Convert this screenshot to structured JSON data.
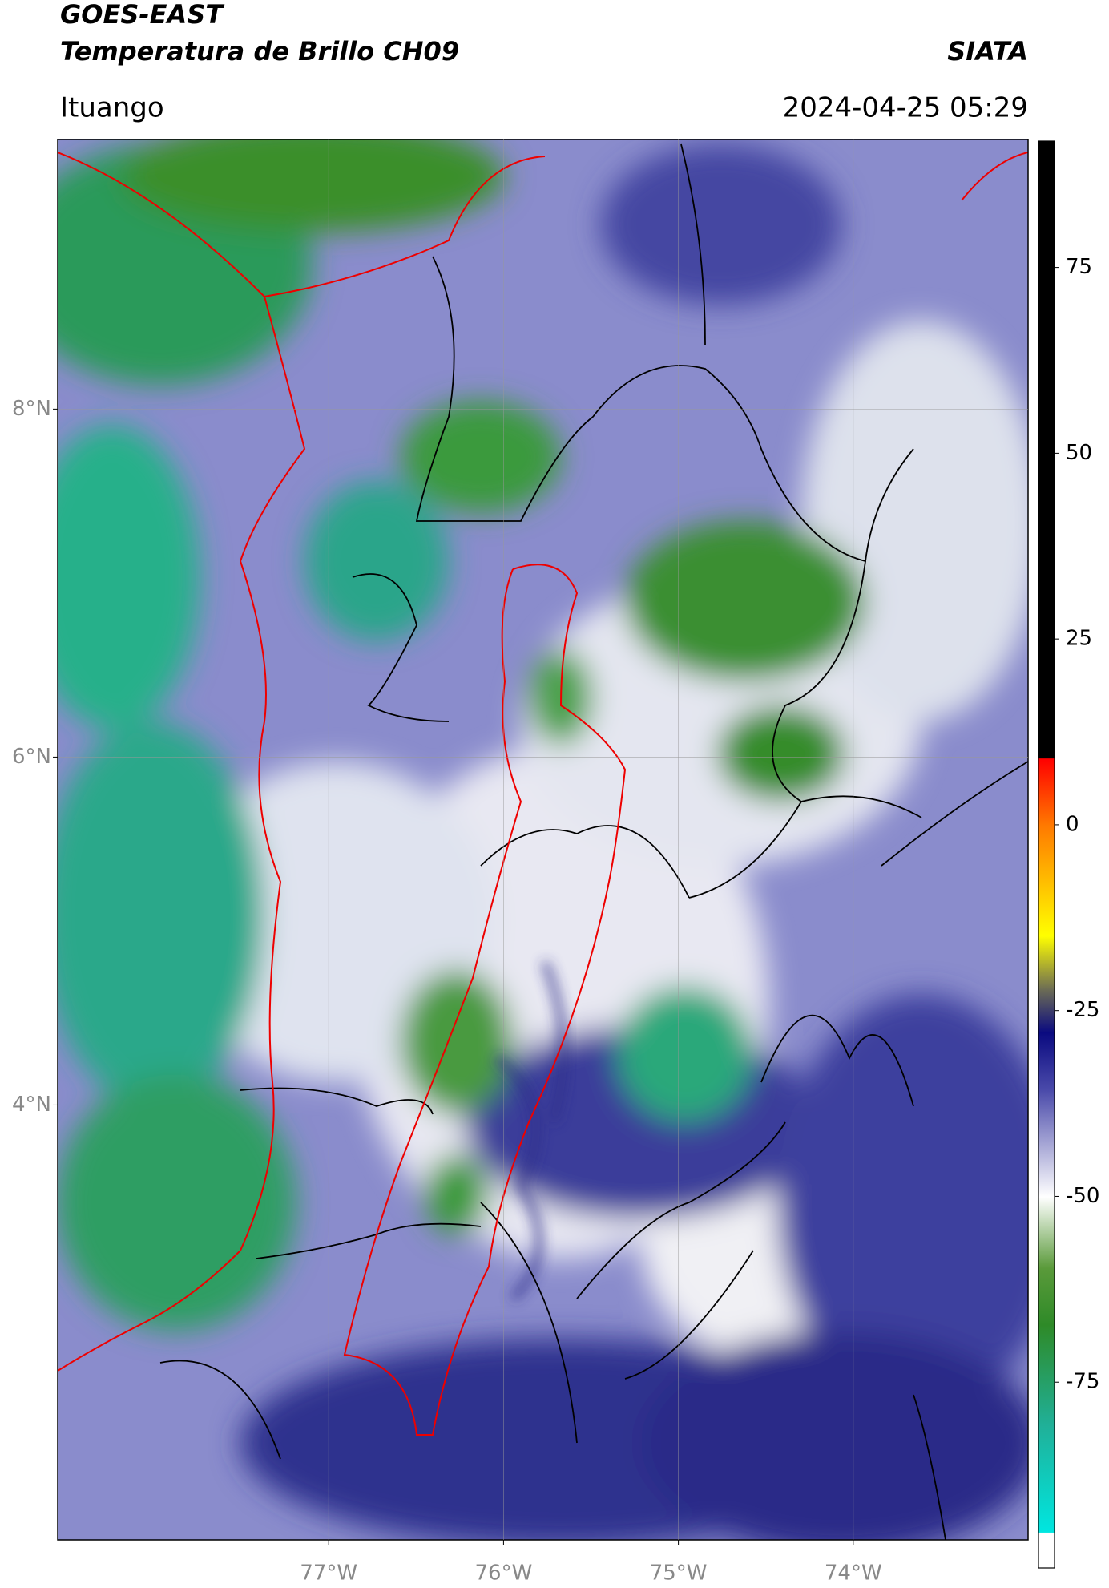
{
  "chart_data": {
    "type": "map",
    "title": "GOES-EAST",
    "subtitle": "Temperatura de Brillo CH09",
    "source": "SIATA",
    "location": "Ituango",
    "timestamp": "2024-04-25 05:29",
    "xlim": [
      -78.55,
      -73
    ],
    "ylim": [
      1.5,
      9.55
    ],
    "xticks": [
      {
        "value": -77,
        "label": "77°W"
      },
      {
        "value": -76,
        "label": "76°W"
      },
      {
        "value": -75,
        "label": "75°W"
      },
      {
        "value": -74,
        "label": "74°W"
      }
    ],
    "yticks": [
      {
        "value": 4,
        "label": "4°N"
      },
      {
        "value": 6,
        "label": "6°N"
      },
      {
        "value": 8,
        "label": "8°N"
      }
    ],
    "grid": true,
    "colorbar": {
      "lim": [
        -100,
        92
      ],
      "ticks": [
        -75,
        -50,
        -25,
        0,
        25,
        50,
        75
      ]
    }
  }
}
